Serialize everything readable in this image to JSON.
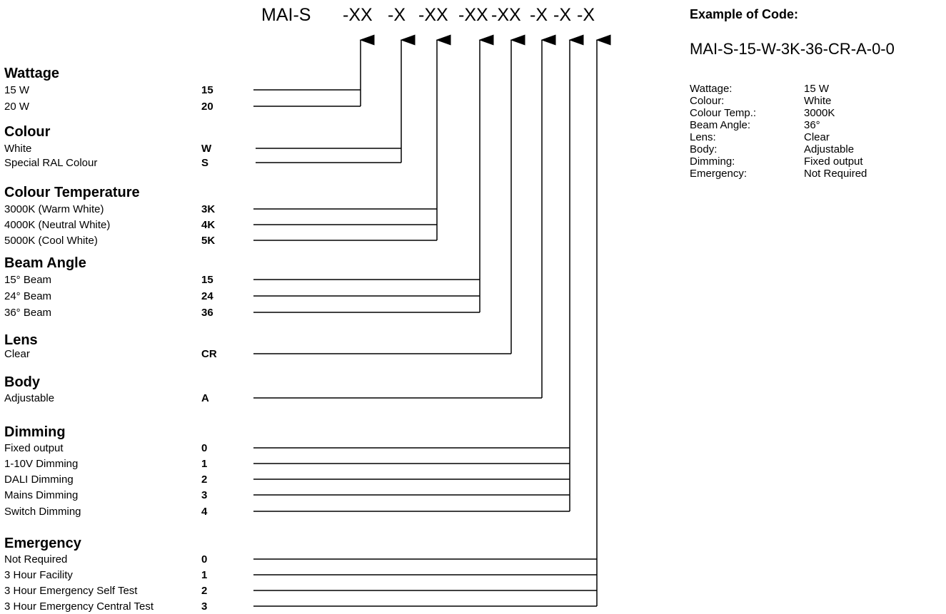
{
  "code_header": {
    "prefix": "MAI-S",
    "segments": [
      "-XX",
      "-X",
      "-XX",
      "-XX",
      "-XX",
      "-X",
      "-X",
      "-X"
    ]
  },
  "categories": [
    {
      "title": "Wattage",
      "options": [
        {
          "label": "15 W",
          "code": "15"
        },
        {
          "label": "20 W",
          "code": "20"
        }
      ]
    },
    {
      "title": "Colour",
      "options": [
        {
          "label": "White",
          "code": "W"
        },
        {
          "label": "Special RAL Colour",
          "code": "S"
        }
      ]
    },
    {
      "title": "Colour Temperature",
      "options": [
        {
          "label": "3000K (Warm White)",
          "code": "3K"
        },
        {
          "label": "4000K (Neutral White)",
          "code": "4K"
        },
        {
          "label": "5000K (Cool White)",
          "code": "5K"
        }
      ]
    },
    {
      "title": "Beam Angle",
      "options": [
        {
          "label": "15° Beam",
          "code": "15"
        },
        {
          "label": "24° Beam",
          "code": "24"
        },
        {
          "label": "36° Beam",
          "code": "36"
        }
      ]
    },
    {
      "title": "Lens",
      "options": [
        {
          "label": "Clear",
          "code": "CR"
        }
      ]
    },
    {
      "title": "Body",
      "options": [
        {
          "label": "Adjustable",
          "code": "A"
        }
      ]
    },
    {
      "title": "Dimming",
      "options": [
        {
          "label": "Fixed output",
          "code": "0"
        },
        {
          "label": "1-10V Dimming",
          "code": "1"
        },
        {
          "label": "DALI Dimming",
          "code": "2"
        },
        {
          "label": "Mains Dimming",
          "code": "3"
        },
        {
          "label": "Switch Dimming",
          "code": "4"
        }
      ]
    },
    {
      "title": "Emergency",
      "options": [
        {
          "label": "Not Required",
          "code": "0"
        },
        {
          "label": "3 Hour Facility",
          "code": "1"
        },
        {
          "label": "3 Hour Emergency Self Test",
          "code": "2"
        },
        {
          "label": "3 Hour Emergency Central Test",
          "code": "3"
        }
      ]
    }
  ],
  "example": {
    "title": "Example of Code:",
    "code": "MAI-S-15-W-3K-36-CR-A-0-0",
    "rows": [
      {
        "key": "Wattage:",
        "value": "15 W"
      },
      {
        "key": "Colour:",
        "value": "White"
      },
      {
        "key": "Colour Temp.:",
        "value": "3000K"
      },
      {
        "key": "Beam Angle:",
        "value": "36°"
      },
      {
        "key": "Lens:",
        "value": "Clear"
      },
      {
        "key": "Body:",
        "value": "Adjustable"
      },
      {
        "key": "Dimming:",
        "value": "Fixed output"
      },
      {
        "key": "Emergency:",
        "value": "Not Required"
      }
    ]
  }
}
